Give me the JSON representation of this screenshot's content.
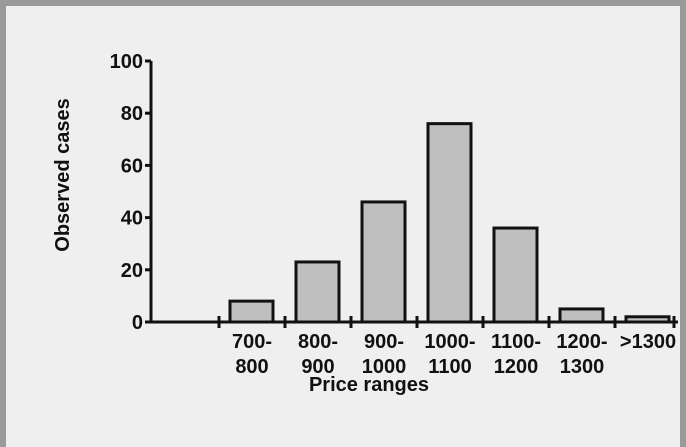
{
  "chart_data": {
    "type": "bar",
    "title": "",
    "xlabel": "Price ranges",
    "ylabel": "Observed cases",
    "categories": [
      [
        "700-",
        "800"
      ],
      [
        "800-",
        "900"
      ],
      [
        "900-",
        "1000"
      ],
      [
        "1000-",
        "1100"
      ],
      [
        "1100-",
        "1200"
      ],
      [
        "1200-",
        "1300"
      ],
      [
        ">1300"
      ]
    ],
    "values": [
      8,
      23,
      46,
      76,
      36,
      5,
      2
    ],
    "ylim": [
      0,
      100
    ],
    "yticks": [
      "0",
      "20",
      "40",
      "60",
      "80",
      "100"
    ],
    "grid": false,
    "legend": "none"
  },
  "colors": {
    "frame": "#9a9a9a",
    "background": "#efefef",
    "bar_fill": "#bfbfbf",
    "bar_stroke": "#111111",
    "axis": "#111111"
  }
}
